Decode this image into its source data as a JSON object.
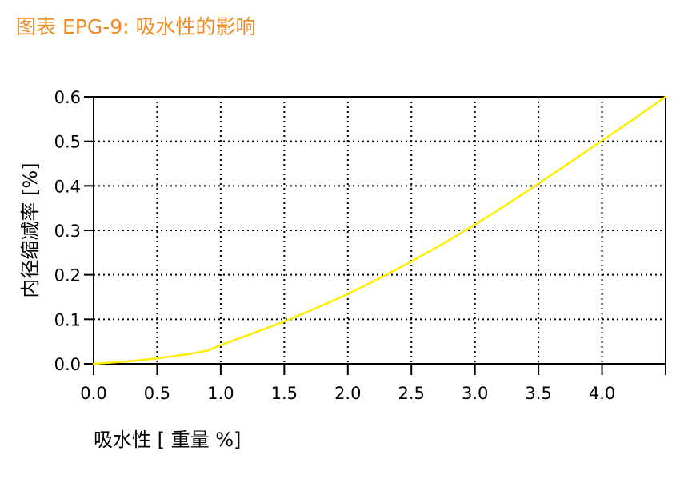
{
  "figure": {
    "title": "图表 EPG-9: 吸水性的影响"
  },
  "colors": {
    "title": "#f08a24",
    "curve": "#ffee00",
    "axis": "#000000",
    "grid": "#000000"
  },
  "chart_data": {
    "type": "line",
    "xlabel": "吸水性 [ 重量 %]",
    "ylabel": "内径缩减率 [%]",
    "xlim": [
      0,
      4.5
    ],
    "ylim": [
      0,
      0.6
    ],
    "xticks": [
      "0.0",
      "0.5",
      "1.0",
      "1.5",
      "2.0",
      "2.5",
      "3.0",
      "3.5",
      "4.0"
    ],
    "yticks": [
      "0.0",
      "0.1",
      "0.2",
      "0.3",
      "0.4",
      "0.5",
      "0.6"
    ],
    "grid": true,
    "grid_style": "dotted",
    "series": [
      {
        "x": [
          0.0,
          0.25,
          0.5,
          0.75,
          0.9,
          1.0,
          1.25,
          1.5,
          1.75,
          2.0,
          2.25,
          2.5,
          2.75,
          3.0,
          3.25,
          3.5,
          3.75,
          4.0,
          4.25,
          4.5
        ],
        "y": [
          0.0,
          0.005,
          0.012,
          0.022,
          0.03,
          0.042,
          0.068,
          0.095,
          0.125,
          0.157,
          0.192,
          0.23,
          0.27,
          0.313,
          0.358,
          0.405,
          0.453,
          0.502,
          0.55,
          0.6
        ]
      }
    ]
  }
}
